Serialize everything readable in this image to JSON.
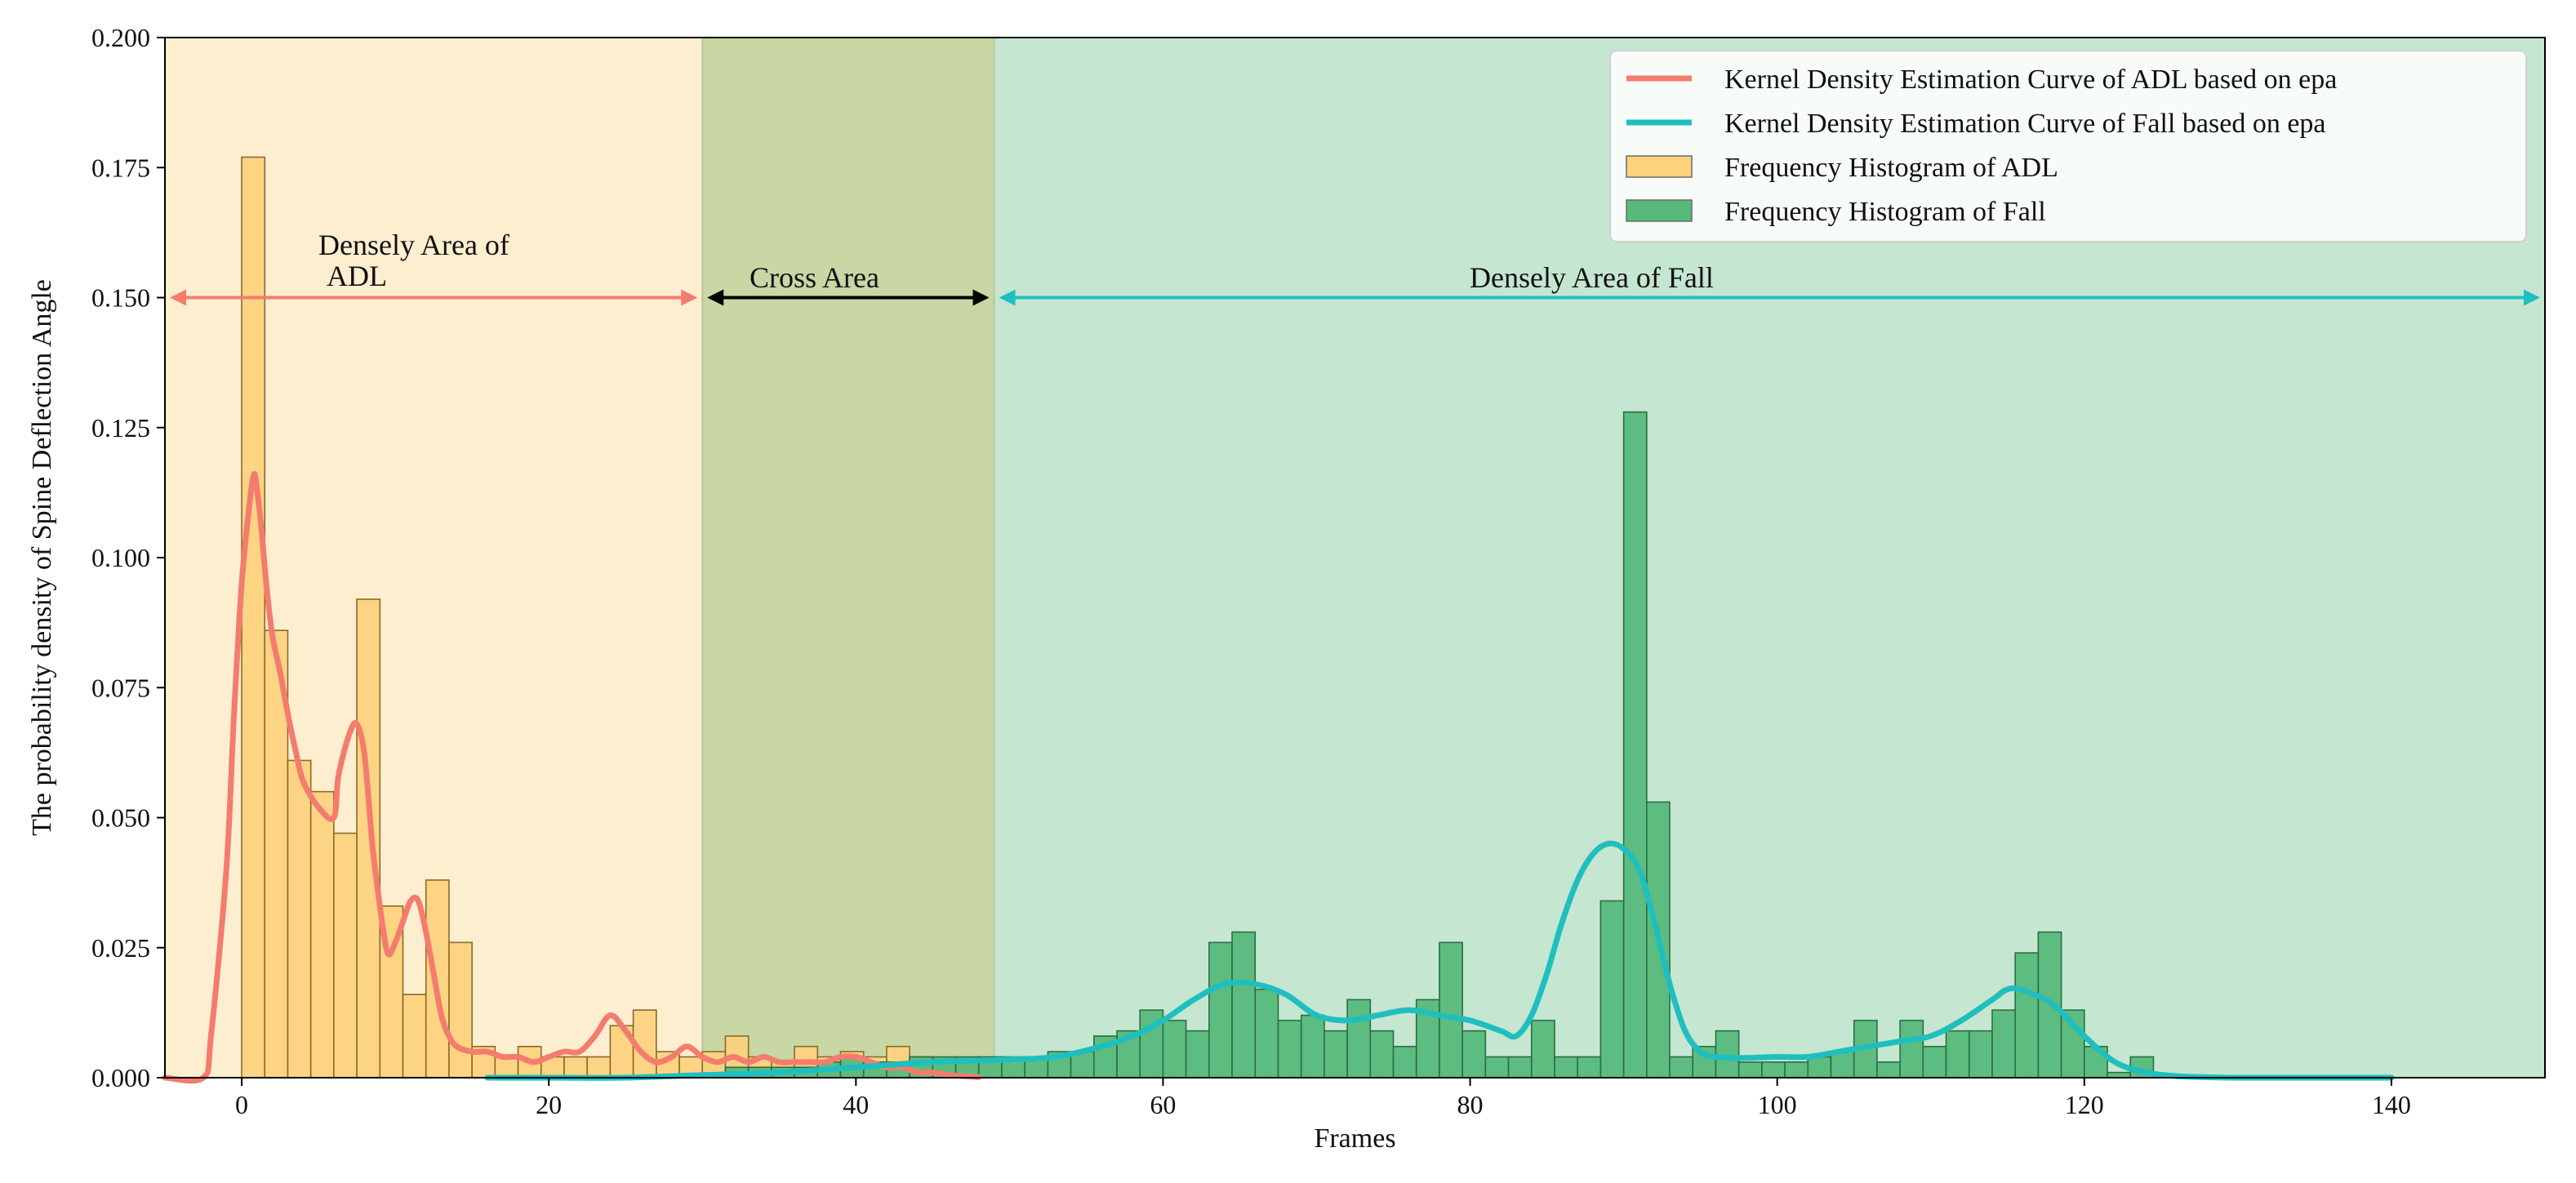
{
  "chart_data": {
    "type": "bar",
    "xlabel": "Frames",
    "ylabel": "The probability density of Spine Deflection Angle",
    "xlim": [
      -5,
      150
    ],
    "ylim": [
      0,
      0.2
    ],
    "x_ticks": [
      0,
      20,
      40,
      60,
      80,
      100,
      120,
      140
    ],
    "x_tick_labels": [
      "0",
      "20",
      "40",
      "60",
      "80",
      "100",
      "120",
      "140"
    ],
    "y_ticks": [
      0,
      0.025,
      0.05,
      0.075,
      0.1,
      0.125,
      0.15,
      0.175,
      0.2
    ],
    "y_tick_labels": [
      "0.000",
      "0.025",
      "0.050",
      "0.075",
      "0.100",
      "0.125",
      "0.150",
      "0.175",
      "0.200"
    ],
    "grid": false,
    "legend_position": "top-right",
    "legend": [
      {
        "label": "Kernel Density Estimation Curve of ADL based on epa",
        "kind": "line",
        "color": "#f47c6e"
      },
      {
        "label": "Kernel Density Estimation Curve of Fall based on epa",
        "kind": "line",
        "color": "#1fbfbf"
      },
      {
        "label": "Frequency Histogram of ADL",
        "kind": "patch",
        "color": "#fcd27f"
      },
      {
        "label": "Frequency Histogram of Fall",
        "kind": "patch",
        "color": "#57b97a"
      }
    ],
    "regions": [
      {
        "name": "adl",
        "x0": -5,
        "x1": 30,
        "color": "#fdeed0",
        "label_lines": [
          "Densely Area of",
          "ADL"
        ],
        "arrow_color": "#f47c6e"
      },
      {
        "name": "cross",
        "x0": 30,
        "x1": 49,
        "color": "#c8d7a4",
        "label_lines": [
          "Cross Area"
        ],
        "arrow_color": "#000000"
      },
      {
        "name": "fall",
        "x0": 49,
        "x1": 150,
        "color": "#c5e6d1",
        "label_lines": [
          "Densely Area of Fall"
        ],
        "arrow_color": "#1fbfbf"
      }
    ],
    "arrow_y": 0.15,
    "series": [
      {
        "name": "Frequency Histogram of ADL",
        "kind": "histogram",
        "bin_start": 0,
        "bin_width": 1.5,
        "color": "#fcd27f",
        "edge": "#8a6a2a",
        "values": [
          0.177,
          0.086,
          0.061,
          0.055,
          0.047,
          0.092,
          0.033,
          0.016,
          0.038,
          0.026,
          0.006,
          0.004,
          0.006,
          0.004,
          0.004,
          0.004,
          0.01,
          0.013,
          0.005,
          0.004,
          0.005,
          0.008,
          0.004,
          0.003,
          0.006,
          0.004,
          0.005,
          0.004,
          0.006,
          0.004,
          0.003,
          0.003
        ]
      },
      {
        "name": "Frequency Histogram of Fall",
        "kind": "histogram",
        "bin_start": 31.5,
        "bin_width": 1.5,
        "color": "#57b97a",
        "edge": "#2c6e44",
        "values": [
          0.002,
          0.002,
          0.002,
          0.002,
          0.003,
          0.004,
          0.003,
          0.003,
          0.004,
          0.004,
          0.004,
          0.004,
          0.004,
          0.004,
          0.005,
          0.005,
          0.008,
          0.009,
          0.013,
          0.011,
          0.009,
          0.026,
          0.028,
          0.017,
          0.011,
          0.012,
          0.009,
          0.015,
          0.009,
          0.006,
          0.015,
          0.026,
          0.009,
          0.004,
          0.004,
          0.011,
          0.004,
          0.004,
          0.034,
          0.128,
          0.053,
          0.004,
          0.006,
          0.009,
          0.003,
          0.003,
          0.003,
          0.004,
          0.005,
          0.011,
          0.003,
          0.011,
          0.006,
          0.009,
          0.009,
          0.013,
          0.024,
          0.028,
          0.013,
          0.006,
          0.001,
          0.004
        ]
      },
      {
        "name": "Kernel Density Estimation Curve of ADL based on epa",
        "kind": "line",
        "color": "#f47c6e",
        "x": [
          -5,
          -2.5,
          -2,
          -1,
          -0.5,
          0,
          0.5,
          0.8,
          1,
          1.3,
          1.6,
          2,
          2.5,
          3,
          3.5,
          4,
          5,
          6,
          6.3,
          7,
          7.5,
          8,
          8.5,
          9,
          9.5,
          10,
          10.5,
          11,
          11.5,
          12,
          12.5,
          13,
          13.5,
          14,
          15,
          16,
          17,
          18,
          19,
          20,
          21,
          22,
          23,
          24,
          25,
          26,
          27,
          28,
          29,
          30,
          31,
          32,
          33,
          34,
          35,
          36,
          37,
          38,
          39,
          40,
          41,
          42,
          43,
          44,
          45,
          46,
          47,
          48
        ],
        "y": [
          0,
          0,
          0.008,
          0.04,
          0.07,
          0.095,
          0.11,
          0.116,
          0.113,
          0.105,
          0.095,
          0.085,
          0.078,
          0.07,
          0.063,
          0.057,
          0.052,
          0.05,
          0.058,
          0.066,
          0.068,
          0.062,
          0.045,
          0.033,
          0.024,
          0.026,
          0.03,
          0.034,
          0.034,
          0.028,
          0.02,
          0.012,
          0.008,
          0.006,
          0.005,
          0.005,
          0.004,
          0.004,
          0.003,
          0.004,
          0.005,
          0.005,
          0.008,
          0.012,
          0.009,
          0.005,
          0.003,
          0.004,
          0.006,
          0.004,
          0.003,
          0.004,
          0.003,
          0.004,
          0.003,
          0.003,
          0.003,
          0.003,
          0.004,
          0.004,
          0.003,
          0.002,
          0.002,
          0.001,
          0.001,
          0.0005,
          0.0003,
          0.0001
        ]
      },
      {
        "name": "Kernel Density Estimation Curve of Fall based on epa",
        "kind": "line",
        "color": "#1fbfbf",
        "x": [
          16,
          20,
          25,
          30,
          35,
          40,
          45,
          50,
          53,
          56,
          58,
          60,
          62,
          64,
          66,
          68,
          70,
          72,
          74,
          76,
          78,
          80,
          82,
          83,
          84,
          85,
          86,
          87,
          88,
          89,
          90,
          91,
          92,
          93,
          94,
          95,
          96,
          98,
          100,
          102,
          104,
          106,
          108,
          110,
          112,
          114,
          115,
          116,
          118,
          120,
          122,
          124,
          126,
          128,
          130,
          135,
          140
        ],
        "y": [
          0,
          0,
          0,
          0.0005,
          0.001,
          0.002,
          0.003,
          0.0035,
          0.004,
          0.006,
          0.008,
          0.011,
          0.015,
          0.018,
          0.018,
          0.016,
          0.012,
          0.011,
          0.012,
          0.013,
          0.012,
          0.011,
          0.009,
          0.008,
          0.012,
          0.02,
          0.03,
          0.038,
          0.043,
          0.045,
          0.044,
          0.04,
          0.03,
          0.018,
          0.009,
          0.005,
          0.004,
          0.0038,
          0.004,
          0.004,
          0.005,
          0.006,
          0.007,
          0.008,
          0.011,
          0.015,
          0.017,
          0.0168,
          0.014,
          0.008,
          0.003,
          0.001,
          0.0003,
          0.0001,
          0,
          0,
          0
        ]
      }
    ]
  }
}
